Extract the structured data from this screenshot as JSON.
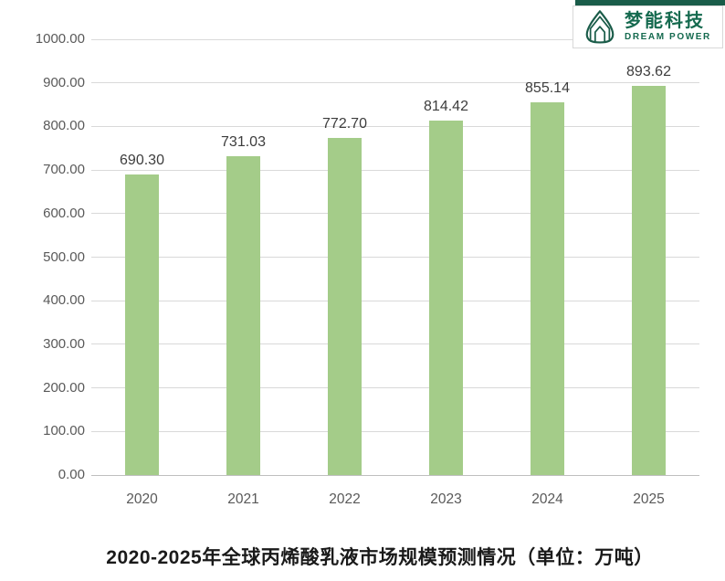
{
  "chart_data": {
    "type": "bar",
    "categories": [
      "2020",
      "2021",
      "2022",
      "2023",
      "2024",
      "2025"
    ],
    "values": [
      690.3,
      731.03,
      772.7,
      814.42,
      855.14,
      893.62
    ],
    "value_labels": [
      "690.30",
      "731.03",
      "772.70",
      "814.42",
      "855.14",
      "893.62"
    ],
    "title": "2020-2025年全球丙烯酸乳液市场规模预测情况（单位：万吨）",
    "xlabel": "",
    "ylabel": "",
    "ylim": [
      0,
      1000
    ],
    "ytick_step": 100,
    "ytick_labels": [
      "0.00",
      "100.00",
      "200.00",
      "300.00",
      "400.00",
      "500.00",
      "600.00",
      "700.00",
      "800.00",
      "900.00",
      "1000.00"
    ],
    "grid": true,
    "legend": false,
    "bar_color": "#a4cc89"
  },
  "logo": {
    "company_name_cn": "梦能科技",
    "company_name_en": "DREAM POWER",
    "brand_color": "#1a5c49"
  },
  "colors": {
    "bar": "#a4cc89",
    "gridline": "#d9d9d9",
    "axis_line": "#bfbfbf",
    "tick_label": "#595959",
    "value_label": "#3d3d3d",
    "title": "#1a1a1a"
  }
}
